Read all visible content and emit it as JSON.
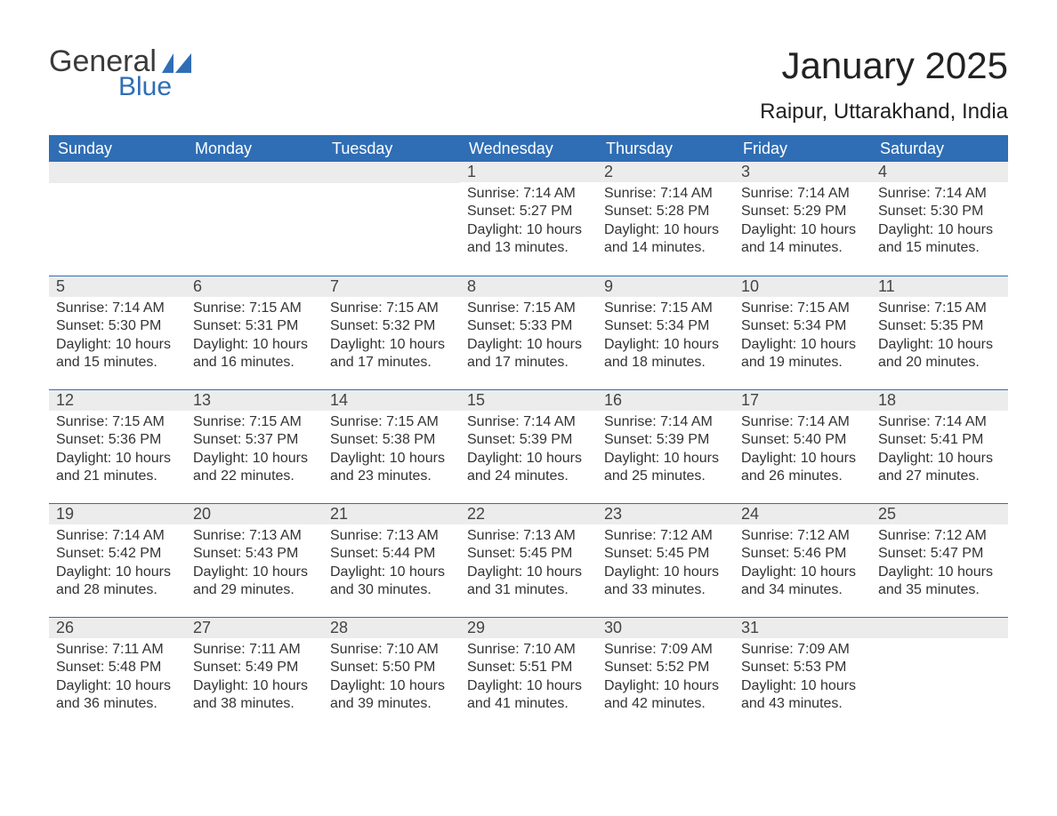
{
  "brand": {
    "word1": "General",
    "word2": "Blue",
    "accent_color": "#2f6eb5"
  },
  "title": "January 2025",
  "location": "Raipur, Uttarakhand, India",
  "colors": {
    "header_bg": "#2f6eb5",
    "header_text": "#ffffff",
    "daynum_bg": "#ececec",
    "row_border": "#2f6eb5",
    "text": "#333333",
    "page_bg": "#ffffff"
  },
  "day_headers": [
    "Sunday",
    "Monday",
    "Tuesday",
    "Wednesday",
    "Thursday",
    "Friday",
    "Saturday"
  ],
  "weeks": [
    [
      null,
      null,
      null,
      {
        "n": "1",
        "sunrise": "Sunrise: 7:14 AM",
        "sunset": "Sunset: 5:27 PM",
        "daylight": "Daylight: 10 hours and 13 minutes."
      },
      {
        "n": "2",
        "sunrise": "Sunrise: 7:14 AM",
        "sunset": "Sunset: 5:28 PM",
        "daylight": "Daylight: 10 hours and 14 minutes."
      },
      {
        "n": "3",
        "sunrise": "Sunrise: 7:14 AM",
        "sunset": "Sunset: 5:29 PM",
        "daylight": "Daylight: 10 hours and 14 minutes."
      },
      {
        "n": "4",
        "sunrise": "Sunrise: 7:14 AM",
        "sunset": "Sunset: 5:30 PM",
        "daylight": "Daylight: 10 hours and 15 minutes."
      }
    ],
    [
      {
        "n": "5",
        "sunrise": "Sunrise: 7:14 AM",
        "sunset": "Sunset: 5:30 PM",
        "daylight": "Daylight: 10 hours and 15 minutes."
      },
      {
        "n": "6",
        "sunrise": "Sunrise: 7:15 AM",
        "sunset": "Sunset: 5:31 PM",
        "daylight": "Daylight: 10 hours and 16 minutes."
      },
      {
        "n": "7",
        "sunrise": "Sunrise: 7:15 AM",
        "sunset": "Sunset: 5:32 PM",
        "daylight": "Daylight: 10 hours and 17 minutes."
      },
      {
        "n": "8",
        "sunrise": "Sunrise: 7:15 AM",
        "sunset": "Sunset: 5:33 PM",
        "daylight": "Daylight: 10 hours and 17 minutes."
      },
      {
        "n": "9",
        "sunrise": "Sunrise: 7:15 AM",
        "sunset": "Sunset: 5:34 PM",
        "daylight": "Daylight: 10 hours and 18 minutes."
      },
      {
        "n": "10",
        "sunrise": "Sunrise: 7:15 AM",
        "sunset": "Sunset: 5:34 PM",
        "daylight": "Daylight: 10 hours and 19 minutes."
      },
      {
        "n": "11",
        "sunrise": "Sunrise: 7:15 AM",
        "sunset": "Sunset: 5:35 PM",
        "daylight": "Daylight: 10 hours and 20 minutes."
      }
    ],
    [
      {
        "n": "12",
        "sunrise": "Sunrise: 7:15 AM",
        "sunset": "Sunset: 5:36 PM",
        "daylight": "Daylight: 10 hours and 21 minutes."
      },
      {
        "n": "13",
        "sunrise": "Sunrise: 7:15 AM",
        "sunset": "Sunset: 5:37 PM",
        "daylight": "Daylight: 10 hours and 22 minutes."
      },
      {
        "n": "14",
        "sunrise": "Sunrise: 7:15 AM",
        "sunset": "Sunset: 5:38 PM",
        "daylight": "Daylight: 10 hours and 23 minutes."
      },
      {
        "n": "15",
        "sunrise": "Sunrise: 7:14 AM",
        "sunset": "Sunset: 5:39 PM",
        "daylight": "Daylight: 10 hours and 24 minutes."
      },
      {
        "n": "16",
        "sunrise": "Sunrise: 7:14 AM",
        "sunset": "Sunset: 5:39 PM",
        "daylight": "Daylight: 10 hours and 25 minutes."
      },
      {
        "n": "17",
        "sunrise": "Sunrise: 7:14 AM",
        "sunset": "Sunset: 5:40 PM",
        "daylight": "Daylight: 10 hours and 26 minutes."
      },
      {
        "n": "18",
        "sunrise": "Sunrise: 7:14 AM",
        "sunset": "Sunset: 5:41 PM",
        "daylight": "Daylight: 10 hours and 27 minutes."
      }
    ],
    [
      {
        "n": "19",
        "sunrise": "Sunrise: 7:14 AM",
        "sunset": "Sunset: 5:42 PM",
        "daylight": "Daylight: 10 hours and 28 minutes."
      },
      {
        "n": "20",
        "sunrise": "Sunrise: 7:13 AM",
        "sunset": "Sunset: 5:43 PM",
        "daylight": "Daylight: 10 hours and 29 minutes."
      },
      {
        "n": "21",
        "sunrise": "Sunrise: 7:13 AM",
        "sunset": "Sunset: 5:44 PM",
        "daylight": "Daylight: 10 hours and 30 minutes."
      },
      {
        "n": "22",
        "sunrise": "Sunrise: 7:13 AM",
        "sunset": "Sunset: 5:45 PM",
        "daylight": "Daylight: 10 hours and 31 minutes."
      },
      {
        "n": "23",
        "sunrise": "Sunrise: 7:12 AM",
        "sunset": "Sunset: 5:45 PM",
        "daylight": "Daylight: 10 hours and 33 minutes."
      },
      {
        "n": "24",
        "sunrise": "Sunrise: 7:12 AM",
        "sunset": "Sunset: 5:46 PM",
        "daylight": "Daylight: 10 hours and 34 minutes."
      },
      {
        "n": "25",
        "sunrise": "Sunrise: 7:12 AM",
        "sunset": "Sunset: 5:47 PM",
        "daylight": "Daylight: 10 hours and 35 minutes."
      }
    ],
    [
      {
        "n": "26",
        "sunrise": "Sunrise: 7:11 AM",
        "sunset": "Sunset: 5:48 PM",
        "daylight": "Daylight: 10 hours and 36 minutes."
      },
      {
        "n": "27",
        "sunrise": "Sunrise: 7:11 AM",
        "sunset": "Sunset: 5:49 PM",
        "daylight": "Daylight: 10 hours and 38 minutes."
      },
      {
        "n": "28",
        "sunrise": "Sunrise: 7:10 AM",
        "sunset": "Sunset: 5:50 PM",
        "daylight": "Daylight: 10 hours and 39 minutes."
      },
      {
        "n": "29",
        "sunrise": "Sunrise: 7:10 AM",
        "sunset": "Sunset: 5:51 PM",
        "daylight": "Daylight: 10 hours and 41 minutes."
      },
      {
        "n": "30",
        "sunrise": "Sunrise: 7:09 AM",
        "sunset": "Sunset: 5:52 PM",
        "daylight": "Daylight: 10 hours and 42 minutes."
      },
      {
        "n": "31",
        "sunrise": "Sunrise: 7:09 AM",
        "sunset": "Sunset: 5:53 PM",
        "daylight": "Daylight: 10 hours and 43 minutes."
      },
      null
    ]
  ]
}
